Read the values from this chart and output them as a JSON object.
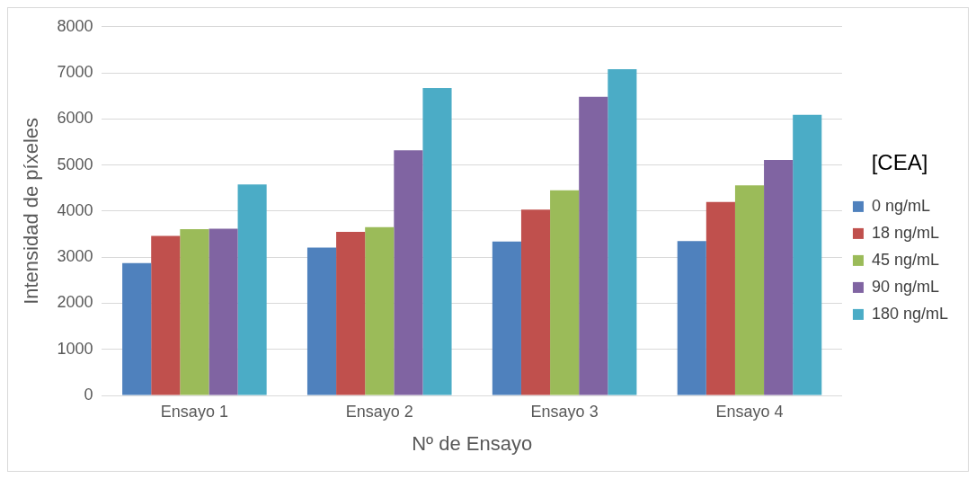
{
  "chart_data": {
    "type": "bar",
    "xlabel": "Nº de Ensayo",
    "ylabel": "Intensidad de píxeles",
    "legend_title": "[CEA]",
    "categories": [
      "Ensayo 1",
      "Ensayo 2",
      "Ensayo 3",
      "Ensayo 4"
    ],
    "series": [
      {
        "name": "0 ng/mL",
        "color": "#4f81bd",
        "values": [
          2870,
          3210,
          3340,
          3350
        ]
      },
      {
        "name": "18 ng/mL",
        "color": "#c0504d",
        "values": [
          3460,
          3550,
          4030,
          4200
        ]
      },
      {
        "name": "45 ng/mL",
        "color": "#9bbb59",
        "values": [
          3610,
          3650,
          4450,
          4560
        ]
      },
      {
        "name": "90 ng/mL",
        "color": "#8064a2",
        "values": [
          3620,
          5320,
          6480,
          5110
        ]
      },
      {
        "name": "180 ng/mL",
        "color": "#4bacc6",
        "values": [
          4580,
          6670,
          7080,
          6090
        ]
      }
    ],
    "ylim": [
      0,
      8000
    ],
    "yticks": [
      0,
      1000,
      2000,
      3000,
      4000,
      5000,
      6000,
      7000,
      8000
    ],
    "grid": "y",
    "legend": "right"
  }
}
